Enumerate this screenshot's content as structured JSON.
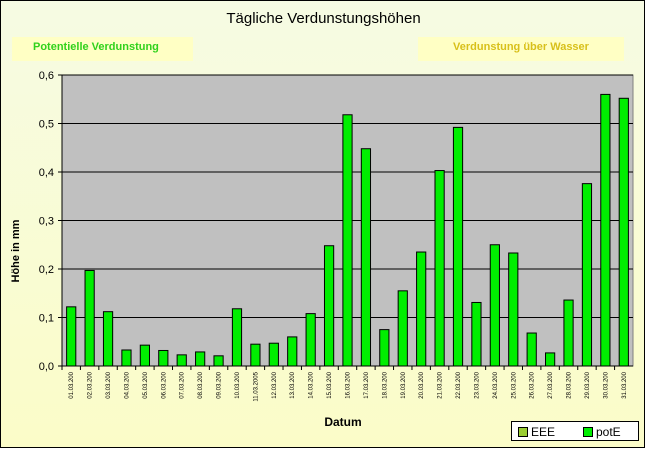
{
  "chart_data": {
    "type": "bar",
    "title": "Tägliche Verdunstungshöhen",
    "xlabel": "Datum",
    "ylabel": "Höhe in mm",
    "ylim": [
      0,
      0.6
    ],
    "yticks": [
      "0,0",
      "0,1",
      "0,2",
      "0,3",
      "0,4",
      "0,5",
      "0,6"
    ],
    "grid": true,
    "legend_position": "bottom-right",
    "categories": [
      "01.03.200",
      "02.03.200",
      "03.03.200",
      "04.03.200",
      "05.03.200",
      "06.03.200",
      "07.03.200",
      "08.03.200",
      "09.03.200",
      "10.03.200",
      "11.03.2005",
      "12.03.200",
      "13.03.200",
      "14.03.200",
      "15.03.200",
      "16.03.200",
      "17.03.200",
      "18.03.200",
      "19.03.200",
      "20.03.200",
      "21.03.200",
      "22.03.200",
      "23.03.200",
      "24.03.200",
      "25.03.200",
      "26.03.200",
      "27.03.200",
      "28.03.200",
      "29.03.200",
      "30.03.200",
      "31.03.200"
    ],
    "series": [
      {
        "name": "EEE",
        "color": "#9acd32",
        "values": [
          0,
          0,
          0,
          0,
          0,
          0,
          0,
          0,
          0,
          0,
          0,
          0,
          0,
          0,
          0,
          0,
          0,
          0,
          0,
          0,
          0,
          0,
          0,
          0,
          0,
          0,
          0,
          0,
          0,
          0,
          0
        ]
      },
      {
        "name": "potE",
        "color": "#00ee00",
        "values": [
          0.122,
          0.197,
          0.112,
          0.033,
          0.043,
          0.032,
          0.023,
          0.029,
          0.021,
          0.118,
          0.045,
          0.047,
          0.06,
          0.108,
          0.248,
          0.518,
          0.448,
          0.075,
          0.155,
          0.235,
          0.403,
          0.492,
          0.131,
          0.25,
          0.233,
          0.068,
          0.027,
          0.136,
          0.376,
          0.56,
          0.552
        ]
      }
    ]
  },
  "boxes": {
    "left_label": "Potentielle Verdunstung",
    "right_label": "Verdunstung über Wasser"
  },
  "colors": {
    "plot_background": "#c0c0c0",
    "left_label_text": "#31d21b",
    "right_label_text": "#d8c01a",
    "label_box_bg": "#ffffc4"
  }
}
